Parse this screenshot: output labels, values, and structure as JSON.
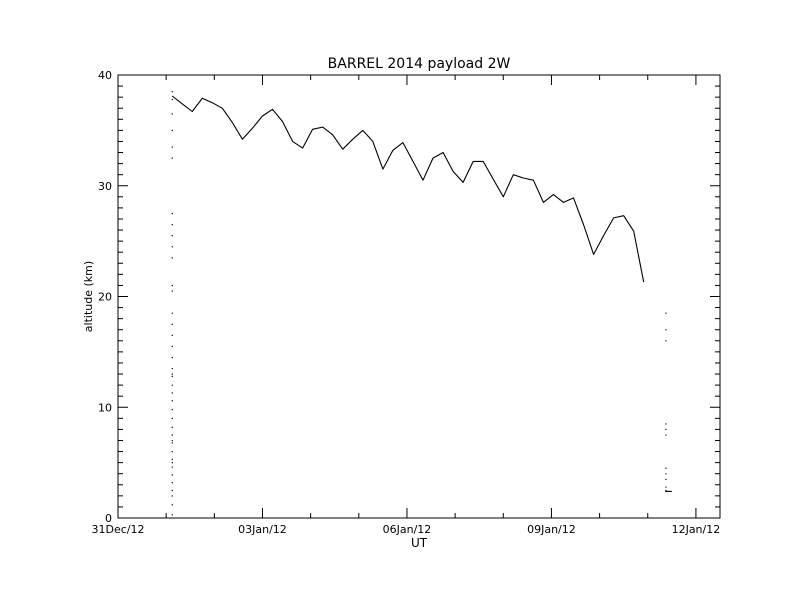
{
  "chart_data": {
    "type": "line",
    "title": "BARREL 2014 payload 2W",
    "xlabel": "UT",
    "ylabel": "altitude (km)",
    "xlim": [
      "2012-12-31",
      "2013-01-12 12:00"
    ],
    "ylim": [
      0,
      40
    ],
    "grid": false,
    "legend": "none",
    "x_tick_labels": [
      "31Dec/12",
      "03Jan/12",
      "06Jan/12",
      "09Jan/12",
      "12Jan/12"
    ],
    "x_tick_values": [
      "2012-12-31",
      "2013-01-03",
      "2013-01-06",
      "2013-01-09",
      "2013-01-12"
    ],
    "y_tick_labels": [
      "0",
      "10",
      "20",
      "30",
      "40"
    ],
    "y_tick_values": [
      0,
      10,
      20,
      30,
      40
    ],
    "series": [
      {
        "name": "",
        "color": "#000000",
        "style": "line",
        "x": [
          "2013-01-01 03:00",
          "2013-01-01 08:00",
          "2013-01-01 13:00",
          "2013-01-01 18:00",
          "2013-01-01 23:00",
          "2013-01-02 04:00",
          "2013-01-02 09:00",
          "2013-01-02 14:00",
          "2013-01-02 19:00",
          "2013-01-03 00:00",
          "2013-01-03 05:00",
          "2013-01-03 10:00",
          "2013-01-03 15:00",
          "2013-01-03 20:00",
          "2013-01-04 01:00",
          "2013-01-04 06:00",
          "2013-01-04 11:00",
          "2013-01-04 16:00",
          "2013-01-04 21:00",
          "2013-01-05 02:00",
          "2013-01-05 07:00",
          "2013-01-05 12:00",
          "2013-01-05 17:00",
          "2013-01-05 22:00",
          "2013-01-06 03:00",
          "2013-01-06 08:00",
          "2013-01-06 13:00",
          "2013-01-06 18:00",
          "2013-01-06 23:00",
          "2013-01-07 04:00",
          "2013-01-07 09:00",
          "2013-01-07 14:00",
          "2013-01-07 19:00",
          "2013-01-08 00:00",
          "2013-01-08 05:00",
          "2013-01-08 10:00",
          "2013-01-08 15:00",
          "2013-01-08 20:00",
          "2013-01-09 01:00",
          "2013-01-09 06:00",
          "2013-01-09 11:00",
          "2013-01-09 16:00",
          "2013-01-09 21:00",
          "2013-01-10 02:00",
          "2013-01-10 07:00",
          "2013-01-10 12:00",
          "2013-01-10 17:00",
          "2013-01-10 22:00",
          "2013-01-11 03:00",
          "2013-01-11 08:00",
          "2013-01-11 11:00"
        ],
        "y": [
          38.1,
          37.4,
          36.7,
          37.9,
          37.5,
          37.0,
          35.7,
          34.2,
          35.2,
          36.3,
          36.9,
          35.8,
          34.0,
          33.4,
          35.1,
          35.3,
          34.6,
          33.3,
          34.2,
          35.0,
          34.0,
          31.5,
          33.2,
          33.9,
          32.2,
          30.5,
          32.5,
          33.0,
          31.3,
          30.3,
          32.2,
          32.2,
          30.6,
          29.0,
          31.0,
          30.7,
          30.5,
          28.5,
          29.2,
          28.5,
          28.9,
          26.5,
          23.8,
          25.5,
          27.1,
          27.3,
          25.9,
          21.3,
          null,
          null,
          null
        ]
      },
      {
        "name": "",
        "color": "#000000",
        "style": "dots",
        "x": [
          "2013-01-01 03:00",
          "2013-01-01 03:00",
          "2013-01-01 03:00",
          "2013-01-01 03:00",
          "2013-01-01 03:00",
          "2013-01-01 03:00",
          "2013-01-01 03:00",
          "2013-01-01 03:00",
          "2013-01-01 03:00",
          "2013-01-01 03:00",
          "2013-01-01 03:00",
          "2013-01-01 03:00",
          "2013-01-01 03:00",
          "2013-01-01 03:00",
          "2013-01-01 03:00",
          "2013-01-01 03:00",
          "2013-01-01 03:00",
          "2013-01-01 03:00",
          "2013-01-01 03:00",
          "2013-01-01 03:00",
          "2013-01-01 03:00",
          "2013-01-01 03:00",
          "2013-01-01 03:00",
          "2013-01-01 03:00",
          "2013-01-01 03:00",
          "2013-01-01 03:00",
          "2013-01-01 03:00",
          "2013-01-01 03:00",
          "2013-01-01 03:00",
          "2013-01-01 03:00",
          "2013-01-01 03:00",
          "2013-01-01 03:00",
          "2013-01-01 03:00",
          "2013-01-01 03:00",
          "2013-01-01 03:00",
          "2013-01-01 03:00",
          "2013-01-01 03:00",
          "2013-01-01 03:00",
          "2013-01-01 03:00",
          "2013-01-01 03:00",
          "2013-01-11 09:00",
          "2013-01-11 09:00",
          "2013-01-11 09:00",
          "2013-01-11 09:00",
          "2013-01-11 09:00",
          "2013-01-11 09:00",
          "2013-01-11 09:00",
          "2013-01-11 09:00",
          "2013-01-11 09:00",
          "2013-01-11 09:00",
          "2013-01-11 09:00",
          "2013-01-11 09:00"
        ],
        "y": [
          36.5,
          35.0,
          33.5,
          32.5,
          27.5,
          26.5,
          25.5,
          24.5,
          23.5,
          20.5,
          18.5,
          16.5,
          15.5,
          14.5,
          13.5,
          12.8,
          12.0,
          11.3,
          10.6,
          9.8,
          9.0,
          8.2,
          7.5,
          6.8,
          6.0,
          5.3,
          4.6,
          3.9,
          3.2,
          2.5,
          2.0,
          1.2,
          0.3,
          38.5,
          37.8,
          21.0,
          17.5,
          13.0,
          7.0,
          5.0,
          18.5,
          17.0,
          16.0,
          8.5,
          8.0,
          7.5,
          4.5,
          4.0,
          3.5,
          2.8,
          2.5,
          2.4
        ]
      },
      {
        "name": "",
        "color": "#000000",
        "style": "line",
        "x": [
          "2013-01-11 09:00",
          "2013-01-11 12:00"
        ],
        "y": [
          2.4,
          2.4
        ]
      }
    ]
  }
}
